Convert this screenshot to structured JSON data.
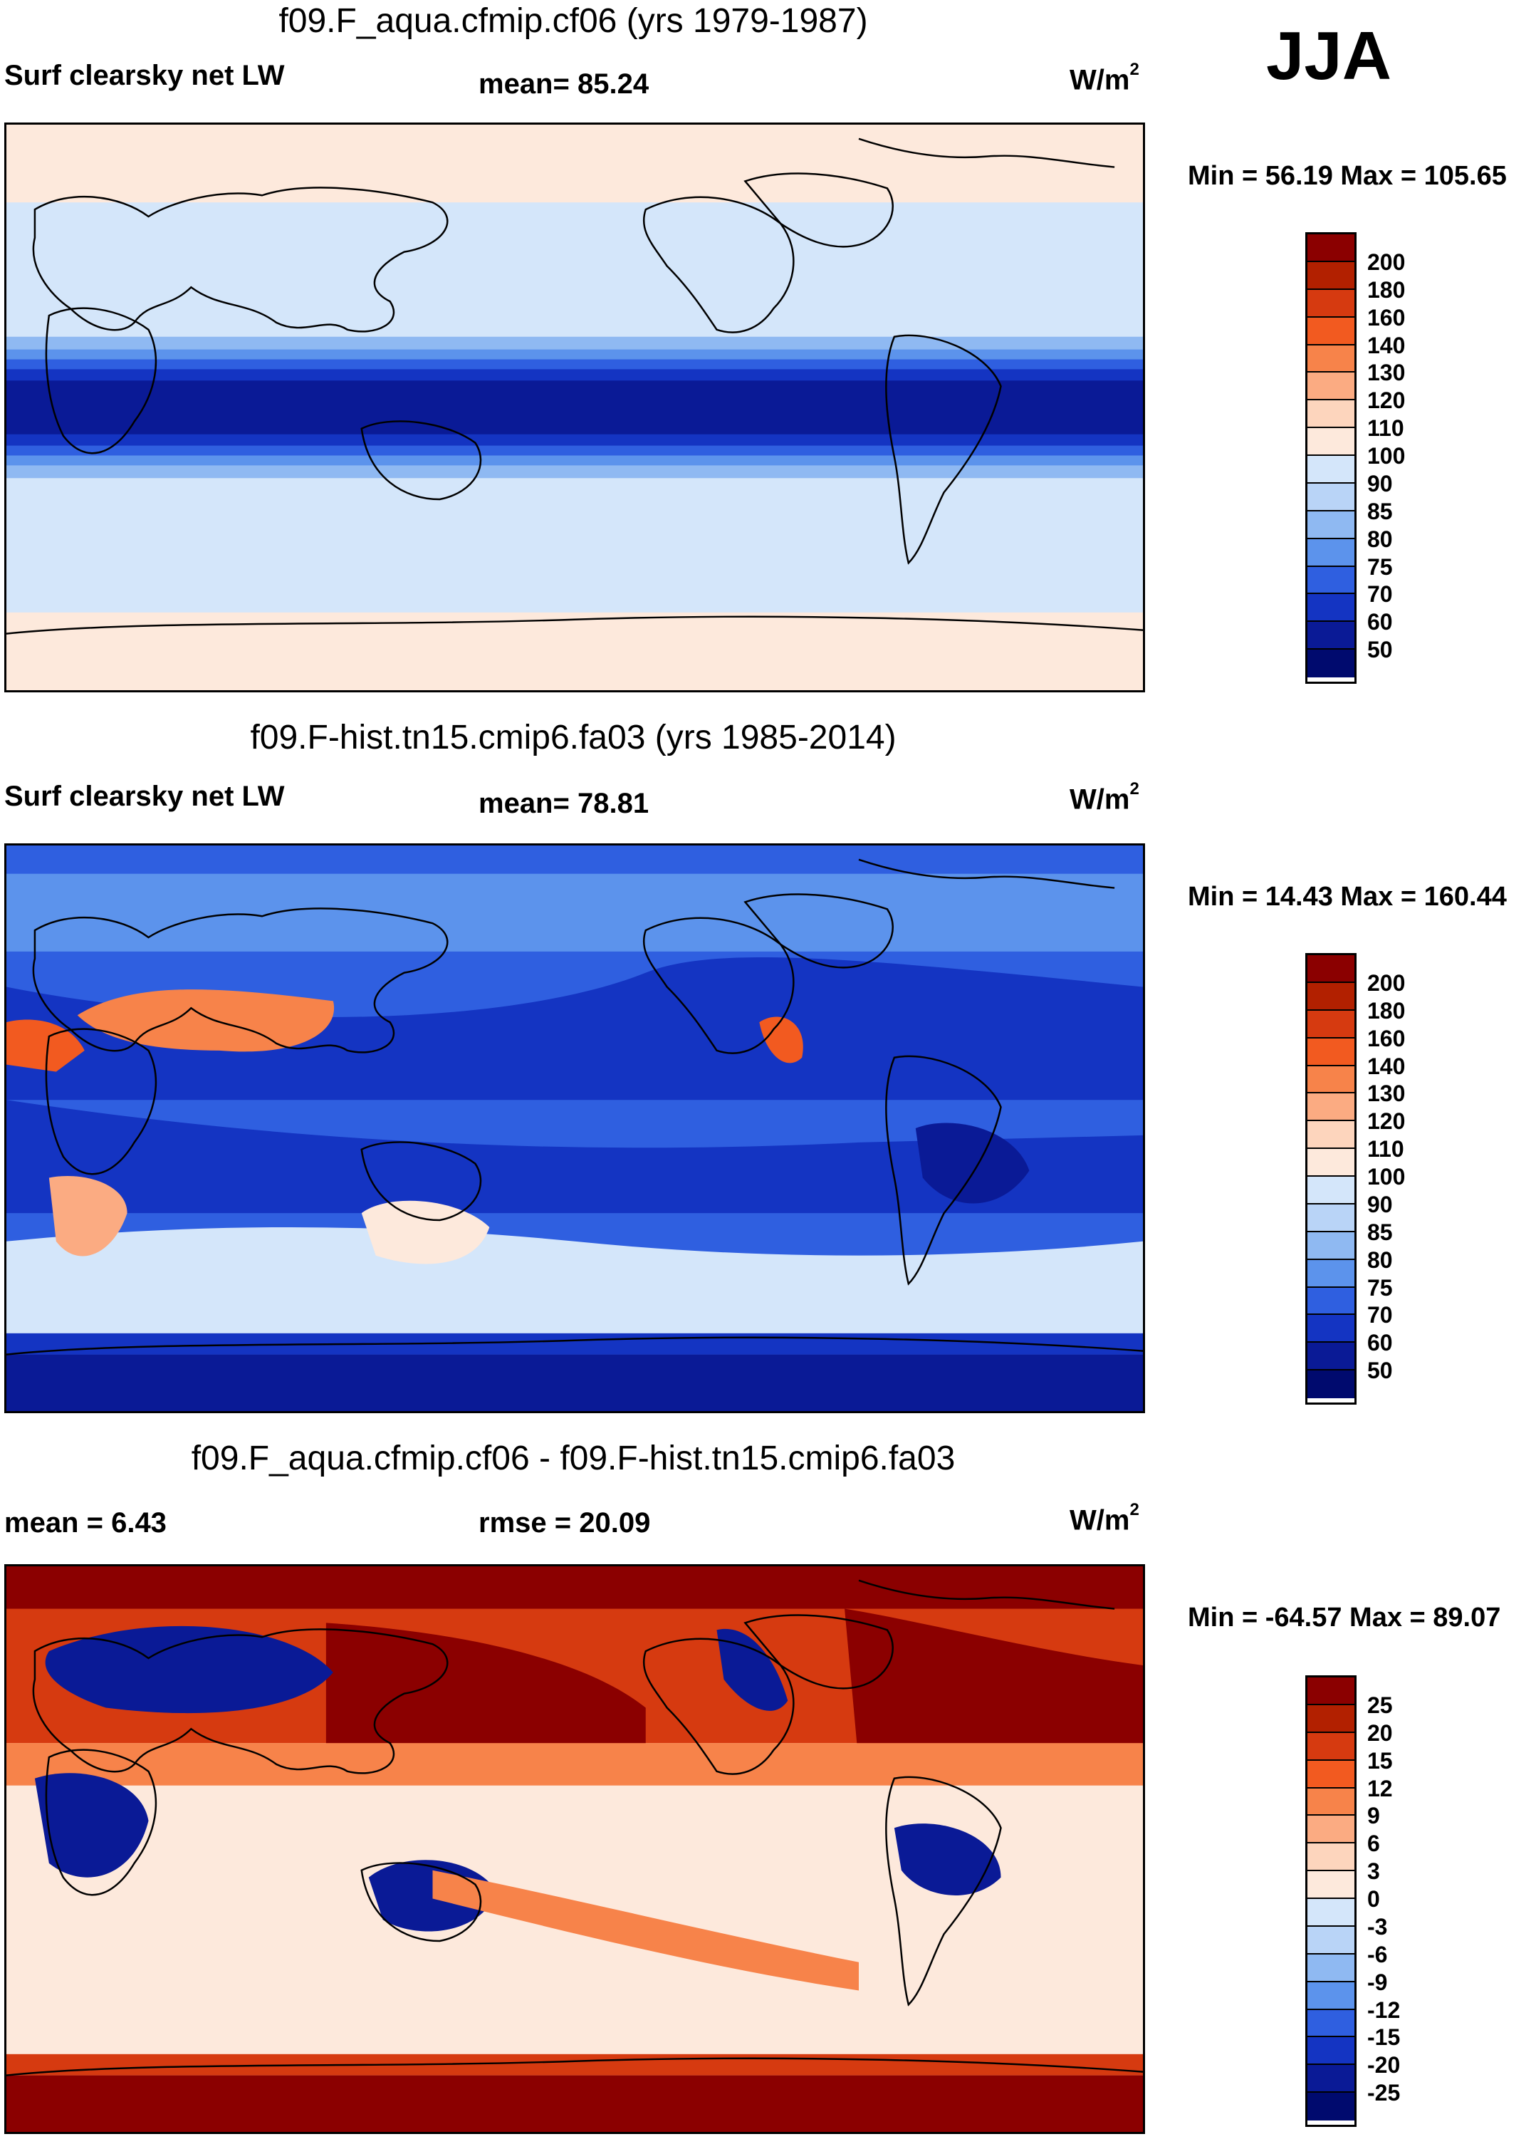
{
  "season": "JJA",
  "panels": [
    {
      "title": "f09.F_aqua.cfmip.cf06 (yrs 1979-1987)",
      "left_label": "Surf clearsky net LW",
      "center_label": "mean=  85.24",
      "units": "W/m",
      "units_sup": "2",
      "minmax": "Min =  56.19 Max = 105.65",
      "colorbar_labels": [
        "200",
        "180",
        "160",
        "140",
        "130",
        "120",
        "110",
        "100",
        "90",
        "85",
        "80",
        "75",
        "70",
        "60",
        "50"
      ]
    },
    {
      "title": "f09.F-hist.tn15.cmip6.fa03 (yrs 1985-2014)",
      "left_label": "Surf clearsky net LW",
      "center_label": "mean=  78.81",
      "units": "W/m",
      "units_sup": "2",
      "minmax": "Min =  14.43 Max = 160.44",
      "colorbar_labels": [
        "200",
        "180",
        "160",
        "140",
        "130",
        "120",
        "110",
        "100",
        "90",
        "85",
        "80",
        "75",
        "70",
        "60",
        "50"
      ]
    },
    {
      "title": "f09.F_aqua.cfmip.cf06 - f09.F-hist.tn15.cmip6.fa03",
      "left_label": "mean =    6.43",
      "center_label": "rmse =  20.09",
      "units": "W/m",
      "units_sup": "2",
      "minmax": "Min = -64.57 Max =  89.07",
      "colorbar_labels": [
        "25",
        "20",
        "15",
        "12",
        "9",
        "6",
        "3",
        "0",
        "-3",
        "-6",
        "-9",
        "-12",
        "-15",
        "-20",
        "-25"
      ]
    }
  ],
  "colorbar_colors": [
    "#8b0000",
    "#b22000",
    "#d63a10",
    "#f25a20",
    "#f7834a",
    "#fbab82",
    "#fdd5bd",
    "#fde9dc",
    "#d4e6fa",
    "#b9d4f7",
    "#8fb9f2",
    "#5c93ec",
    "#2f5fe0",
    "#1434c2",
    "#0a1a96",
    "#000a6e"
  ]
}
